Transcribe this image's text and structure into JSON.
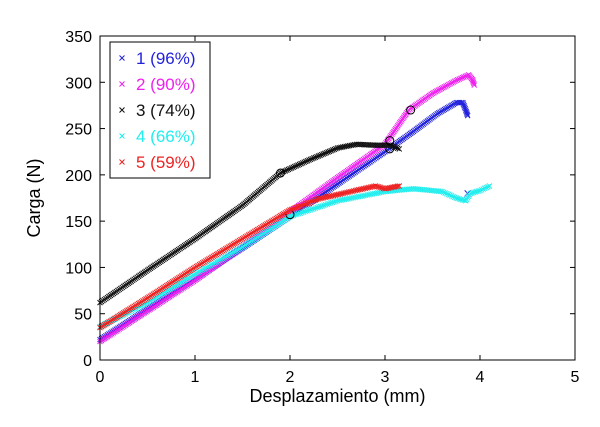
{
  "chart_data": {
    "type": "scatter",
    "xlabel": "Desplazamiento (mm)",
    "ylabel": "Carga (N)",
    "xlim": [
      0,
      5
    ],
    "ylim": [
      0,
      350
    ],
    "xticks": [
      "0",
      "1",
      "2",
      "3",
      "4",
      "5"
    ],
    "yticks": [
      "0",
      "50",
      "100",
      "150",
      "200",
      "250",
      "300",
      "350"
    ],
    "grid": false,
    "legend_position": "top-left",
    "marker": "x",
    "series": [
      {
        "name": "1 (96%)",
        "color": "#2222dd",
        "points": [
          [
            0,
            22
          ],
          [
            0.5,
            55
          ],
          [
            1.0,
            88
          ],
          [
            1.5,
            121
          ],
          [
            2.0,
            155
          ],
          [
            2.5,
            190
          ],
          [
            3.0,
            225
          ],
          [
            3.3,
            247
          ],
          [
            3.55,
            266
          ],
          [
            3.75,
            278
          ],
          [
            3.82,
            278
          ],
          [
            3.85,
            270
          ],
          [
            3.87,
            264
          ]
        ],
        "circle_points": [
          [
            3.05,
            228
          ]
        ],
        "tail_points": [
          [
            3.87,
            180
          ]
        ]
      },
      {
        "name": "2 (90%)",
        "color": "#ee22ee",
        "points": [
          [
            0,
            20
          ],
          [
            0.5,
            53
          ],
          [
            1.0,
            86
          ],
          [
            1.5,
            122
          ],
          [
            2.0,
            160
          ],
          [
            2.5,
            197
          ],
          [
            3.0,
            233
          ],
          [
            3.25,
            270
          ],
          [
            3.5,
            288
          ],
          [
            3.75,
            302
          ],
          [
            3.88,
            308
          ],
          [
            3.92,
            303
          ],
          [
            3.94,
            297
          ]
        ],
        "circle_points": [
          [
            3.27,
            270
          ]
        ]
      },
      {
        "name": "3 (74%)",
        "color": "#111111",
        "points": [
          [
            0,
            62
          ],
          [
            0.5,
            97
          ],
          [
            1.0,
            131
          ],
          [
            1.5,
            167
          ],
          [
            1.9,
            202
          ],
          [
            2.2,
            216
          ],
          [
            2.5,
            229
          ],
          [
            2.7,
            233
          ],
          [
            2.9,
            232
          ],
          [
            3.05,
            232
          ],
          [
            3.15,
            228
          ]
        ],
        "circle_points": [
          [
            1.9,
            202
          ],
          [
            3.05,
            237
          ]
        ]
      },
      {
        "name": "4 (66%)",
        "color": "#22eeee",
        "points": [
          [
            0,
            36
          ],
          [
            0.5,
            62
          ],
          [
            1.0,
            93
          ],
          [
            1.5,
            122
          ],
          [
            2.0,
            155
          ],
          [
            2.5,
            172
          ],
          [
            3.0,
            182
          ],
          [
            3.3,
            185
          ],
          [
            3.6,
            182
          ],
          [
            3.75,
            175
          ],
          [
            3.85,
            172
          ],
          [
            3.9,
            180
          ],
          [
            4.0,
            183
          ],
          [
            4.1,
            188
          ]
        ],
        "circle_points": [
          [
            2.0,
            157
          ]
        ]
      },
      {
        "name": "5 (59%)",
        "color": "#ee2222",
        "points": [
          [
            0,
            35
          ],
          [
            0.5,
            67
          ],
          [
            1.0,
            100
          ],
          [
            1.5,
            131
          ],
          [
            2.0,
            162
          ],
          [
            2.3,
            174
          ],
          [
            2.6,
            181
          ],
          [
            2.9,
            188
          ],
          [
            3.0,
            185
          ],
          [
            3.1,
            187
          ],
          [
            3.15,
            188
          ]
        ]
      }
    ]
  }
}
